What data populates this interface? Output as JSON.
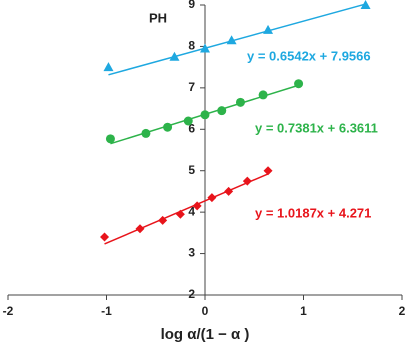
{
  "chart_data": {
    "type": "scatter",
    "y_axis_label": "PH",
    "x_axis_label": "log α/(1 − α )",
    "xlim": [
      -2,
      2
    ],
    "xticks": [
      -2,
      -1,
      0,
      1,
      2
    ],
    "ylim": [
      2,
      9
    ],
    "yticks": [
      2,
      3,
      4,
      5,
      6,
      7,
      8,
      9
    ],
    "series": [
      {
        "color": "#1ea8e0",
        "marker": "triangle",
        "x": [
          -0.98,
          -0.31,
          0,
          0.27,
          0.64,
          1.63
        ],
        "values": [
          7.5,
          7.75,
          7.95,
          8.15,
          8.4,
          9.0
        ],
        "trendline": {
          "slope": 0.6542,
          "intercept": 7.9566,
          "label": "y = 0.6542x + 7.9566"
        }
      },
      {
        "color": "#2db34a",
        "marker": "circle",
        "x": [
          -0.96,
          -0.6,
          -0.38,
          -0.17,
          0,
          0.17,
          0.36,
          0.59,
          0.95
        ],
        "values": [
          5.77,
          5.9,
          6.05,
          6.2,
          6.35,
          6.45,
          6.65,
          6.83,
          7.1
        ],
        "trendline": {
          "slope": 0.7381,
          "intercept": 6.3611,
          "label": "y = 0.7381x + 6.3611"
        }
      },
      {
        "color": "#e8141b",
        "marker": "diamond",
        "x": [
          -1.02,
          -0.66,
          -0.43,
          -0.25,
          -0.08,
          0.07,
          0.24,
          0.43,
          0.64
        ],
        "values": [
          3.4,
          3.6,
          3.8,
          3.95,
          4.15,
          4.35,
          4.5,
          4.75,
          5.0
        ],
        "trendline": {
          "slope": 1.0187,
          "intercept": 4.271,
          "label": "y = 1.0187x + 4.271"
        }
      }
    ]
  }
}
